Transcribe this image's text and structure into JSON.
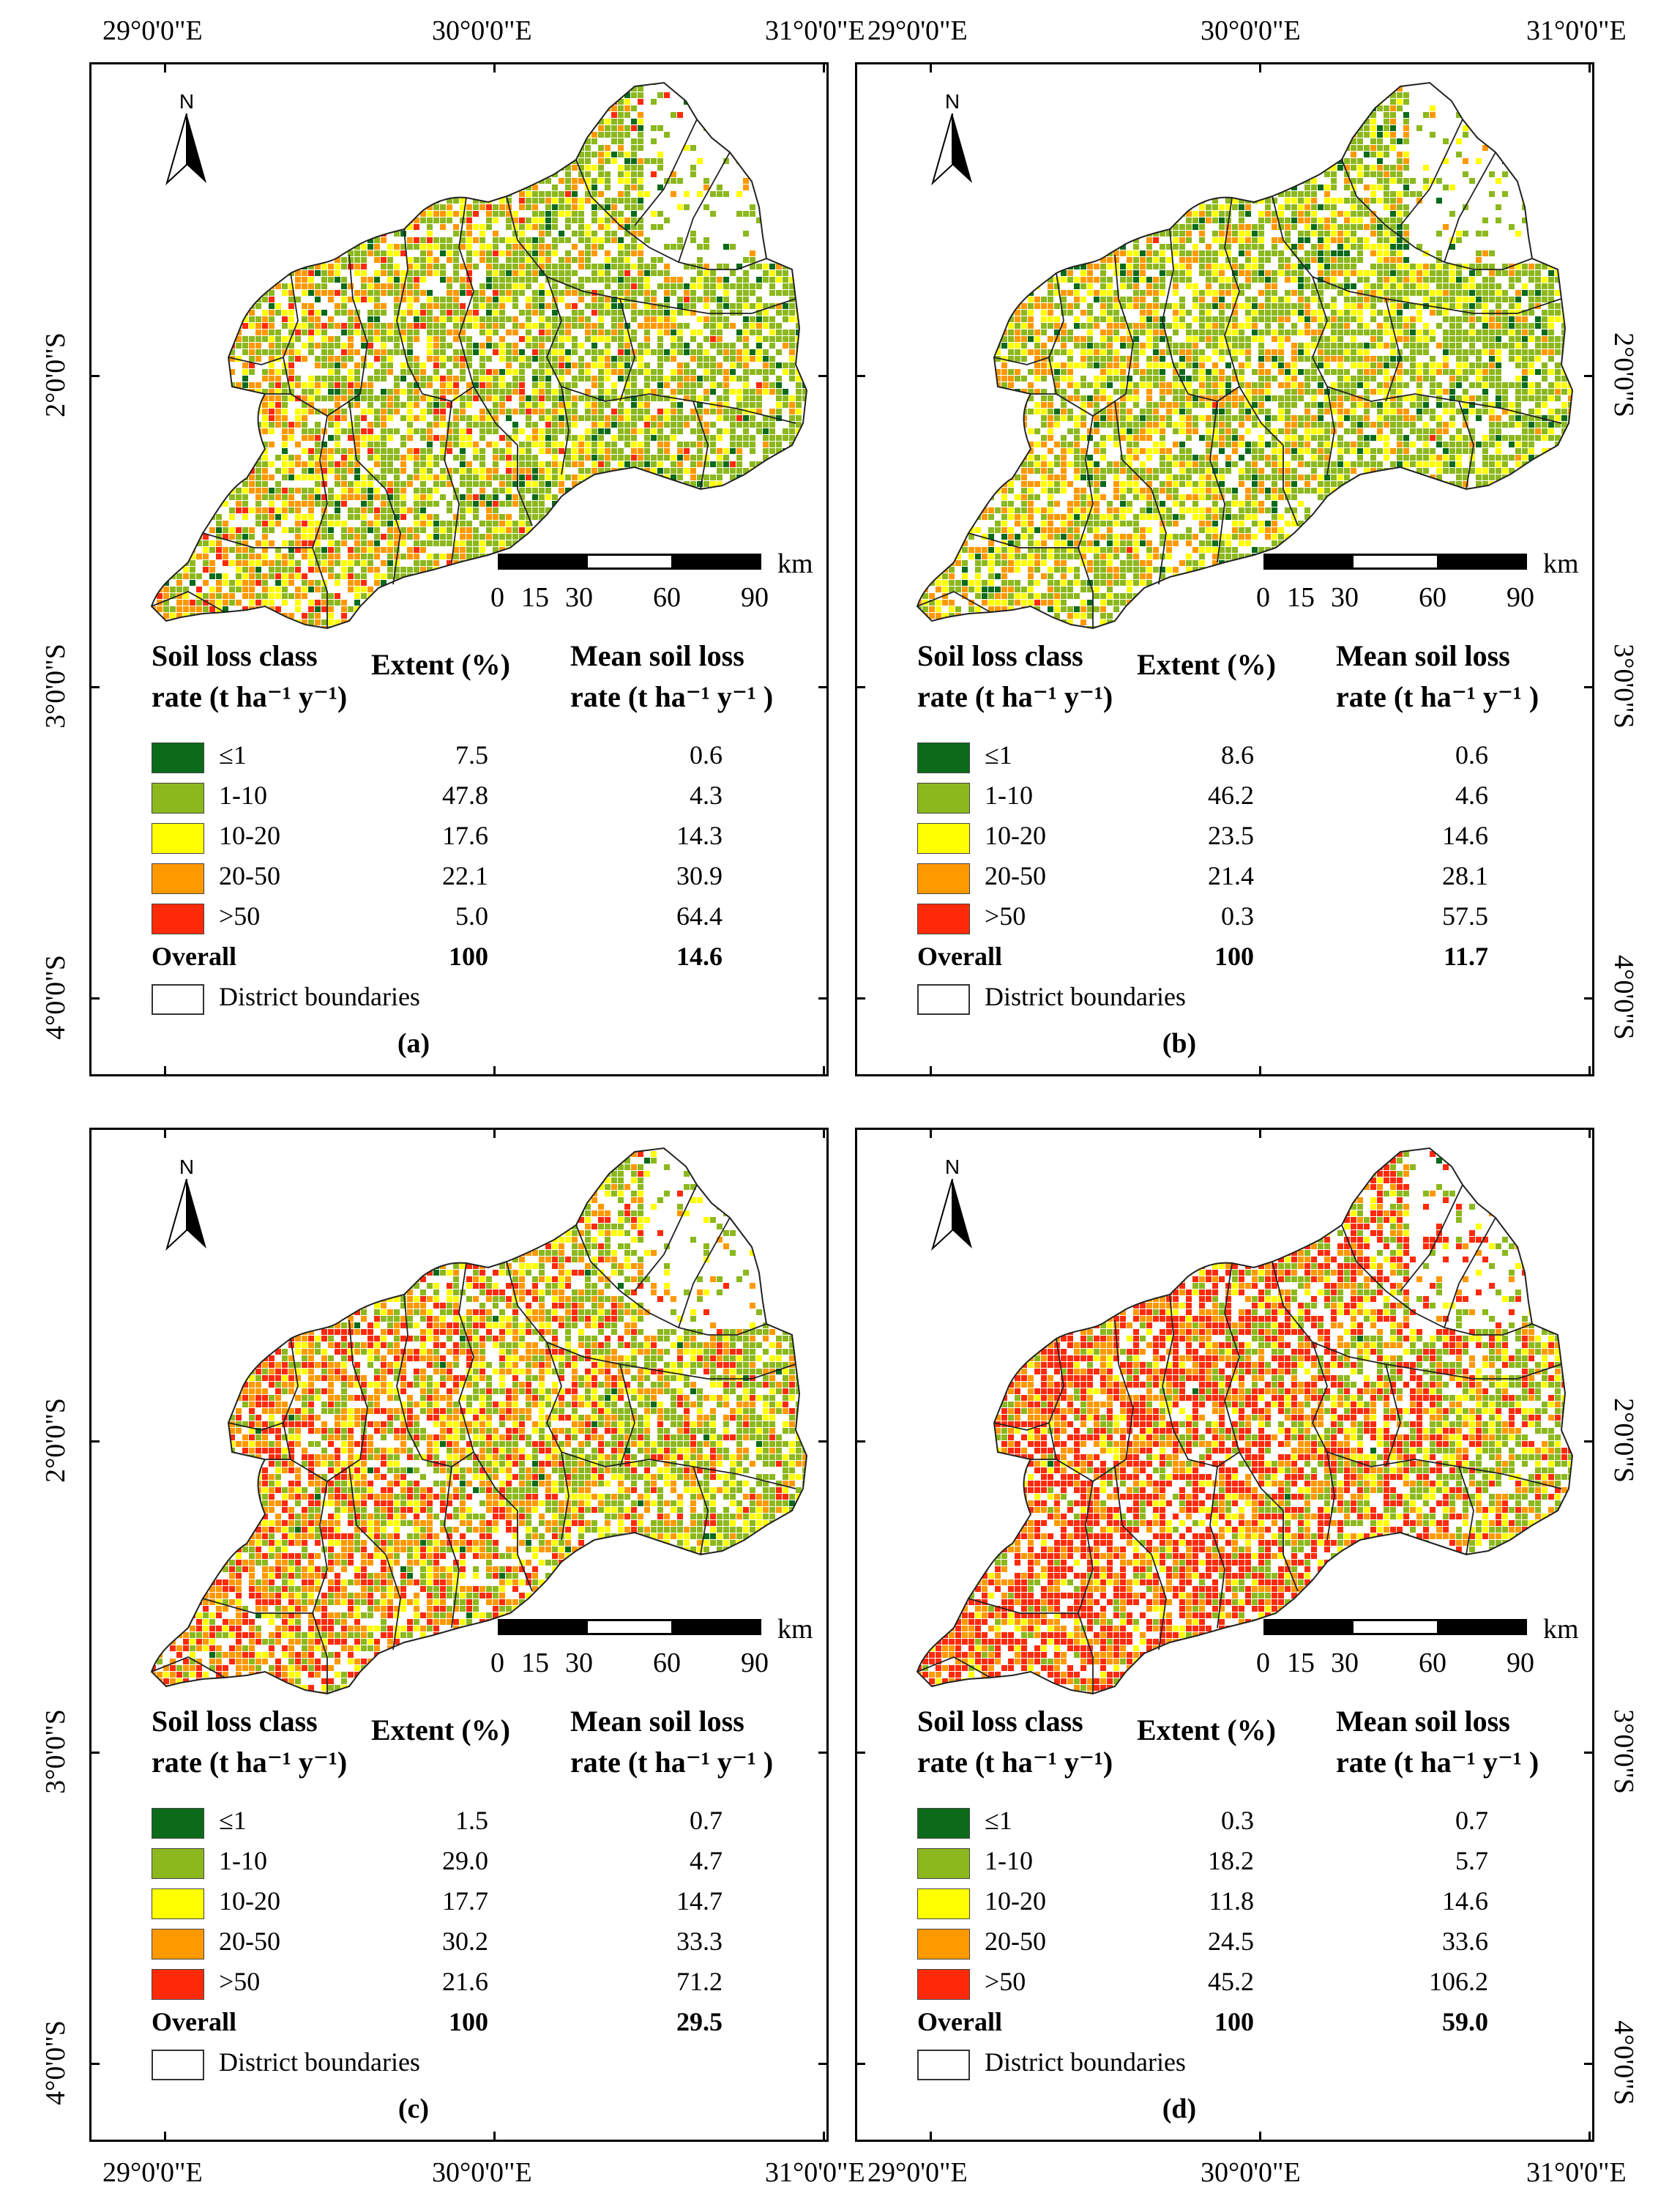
{
  "axes": {
    "lon_labels": [
      "29°0'0\"E",
      "30°0'0\"E",
      "31°0'0\"E"
    ],
    "lat_labels": [
      "2°0'0\"S",
      "3°0'0\"S",
      "4°0'0\"S"
    ]
  },
  "map_common": {
    "north_letter": "N",
    "scale_ticks": [
      "0",
      "15",
      "30",
      "60",
      "90"
    ],
    "scale_unit": "km",
    "hdr_class_1": "Soil loss class",
    "hdr_class_2": "rate (t ha⁻¹ y⁻¹)",
    "hdr_extent": "Extent (%)",
    "hdr_mean_1": "Mean soil loss",
    "hdr_mean_2": "rate (t ha⁻¹ y⁻¹ )",
    "overall_label": "Overall",
    "boundary_label": "District boundaries",
    "class_labels": [
      "≤1",
      "1-10",
      "10-20",
      "20-50",
      ">50"
    ]
  },
  "colors": {
    "class_1": "#0b6b1a",
    "class_2": "#8cb81e",
    "class_3": "#ffff00",
    "class_4": "#ff9900",
    "class_5": "#ff2a0a"
  },
  "panels": [
    {
      "label": "(a)",
      "extent": [
        "7.5",
        "47.8",
        "17.6",
        "22.1",
        "5.0"
      ],
      "mean": [
        "0.6",
        "4.3",
        "14.3",
        "30.9",
        "64.4"
      ],
      "overall_extent": "100",
      "overall_mean": "14.6"
    },
    {
      "label": "(b)",
      "extent": [
        "8.6",
        "46.2",
        "23.5",
        "21.4",
        "0.3"
      ],
      "mean": [
        "0.6",
        "4.6",
        "14.6",
        "28.1",
        "57.5"
      ],
      "overall_extent": "100",
      "overall_mean": "11.7"
    },
    {
      "label": "(c)",
      "extent": [
        "1.5",
        "29.0",
        "17.7",
        "30.2",
        "21.6"
      ],
      "mean": [
        "0.7",
        "4.7",
        "14.7",
        "33.3",
        "71.2"
      ],
      "overall_extent": "100",
      "overall_mean": "29.5"
    },
    {
      "label": "(d)",
      "extent": [
        "0.3",
        "18.2",
        "11.8",
        "24.5",
        "45.2"
      ],
      "mean": [
        "0.7",
        "5.7",
        "14.6",
        "33.6",
        "106.2"
      ],
      "overall_extent": "100",
      "overall_mean": "59.0"
    }
  ]
}
